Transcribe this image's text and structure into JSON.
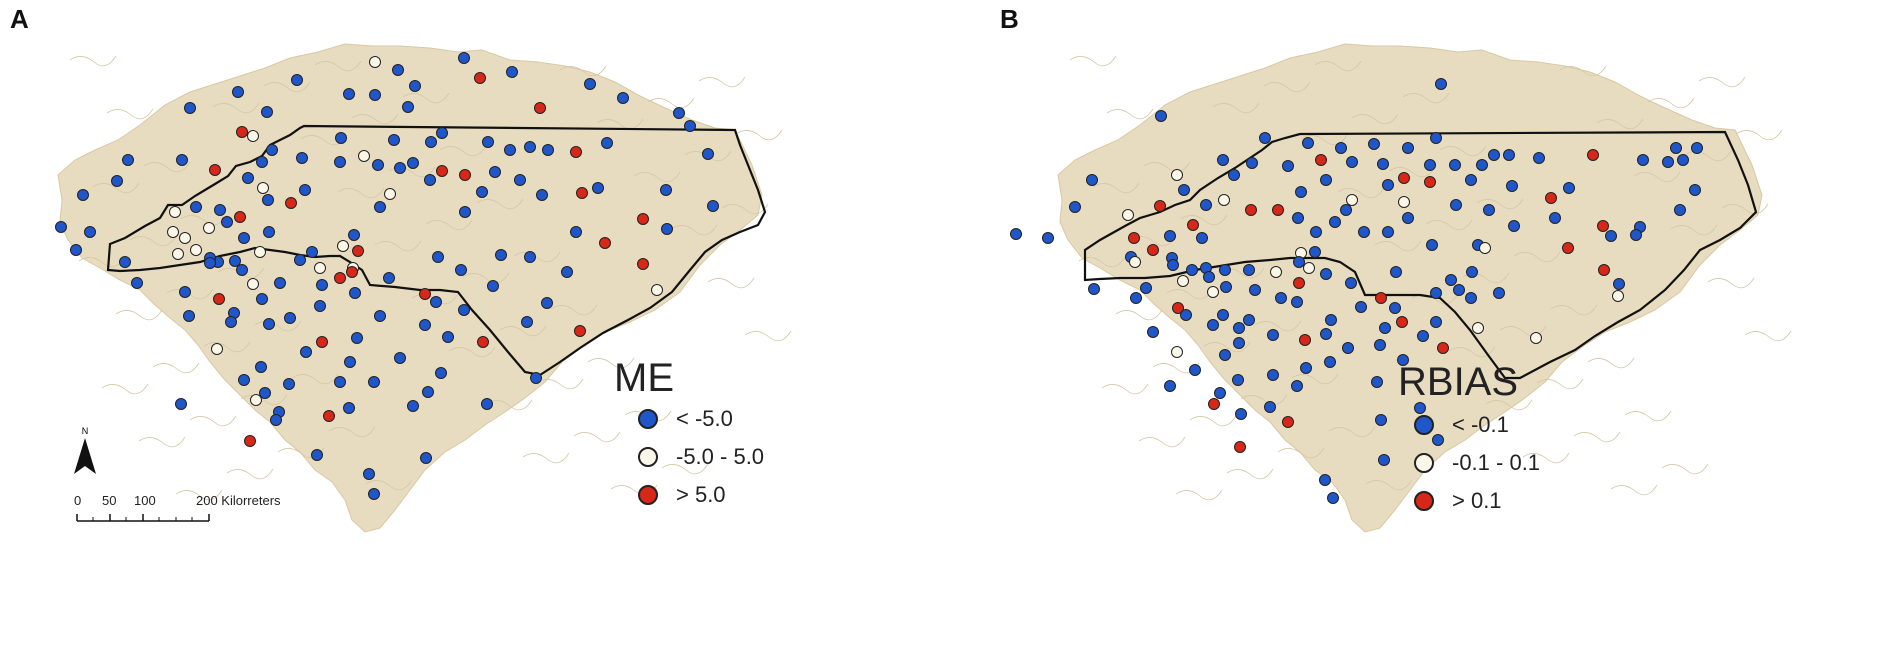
{
  "panels": [
    {
      "letter": "A",
      "legend": {
        "title": "ME",
        "items": [
          {
            "label": "< -5.0",
            "color": "#1f56c9"
          },
          {
            "label": "-5.0 - 5.0",
            "color": "#fbf7e8"
          },
          {
            "label": "> 5.0",
            "color": "#d62718"
          }
        ]
      },
      "north_label": "N",
      "scale_ticks": [
        "0",
        "50",
        "100",
        "200 Kilorreters"
      ]
    },
    {
      "letter": "B",
      "legend": {
        "title": "RBIAS",
        "items": [
          {
            "label": "< -0.1",
            "color": "#1f56c9"
          },
          {
            "label": "-0.1 - 0.1",
            "color": "#fbf7e8"
          },
          {
            "label": "> 0.1",
            "color": "#d62718"
          }
        ]
      }
    }
  ],
  "colors": {
    "land": "#e8dcc0",
    "boundary": "#111111",
    "blue": "#1f56c9",
    "white": "#fbf7e8",
    "red": "#d62718"
  }
}
